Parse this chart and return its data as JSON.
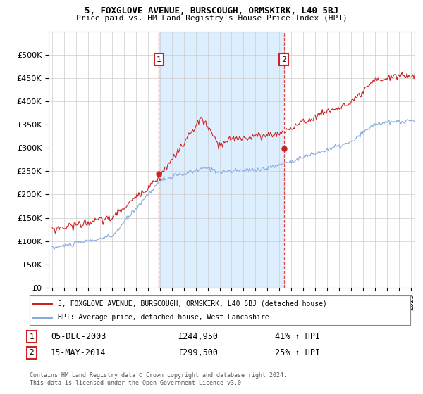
{
  "title": "5, FOXGLOVE AVENUE, BURSCOUGH, ORMSKIRK, L40 5BJ",
  "subtitle": "Price paid vs. HM Land Registry's House Price Index (HPI)",
  "ylim": [
    0,
    550000
  ],
  "yticks": [
    0,
    50000,
    100000,
    150000,
    200000,
    250000,
    300000,
    350000,
    400000,
    450000,
    500000
  ],
  "xlim_start": 1994.7,
  "xlim_end": 2025.3,
  "line1_color": "#cc2222",
  "line2_color": "#88aadd",
  "vline_color": "#dd4444",
  "shade_color": "#ddeeff",
  "marker1_year": 2003.92,
  "marker1_price": 244950,
  "marker2_year": 2014.37,
  "marker2_price": 299500,
  "legend_label1": "5, FOXGLOVE AVENUE, BURSCOUGH, ORMSKIRK, L40 5BJ (detached house)",
  "legend_label2": "HPI: Average price, detached house, West Lancashire",
  "annotation1_date": "05-DEC-2003",
  "annotation1_price": "£244,950",
  "annotation1_hpi": "41% ↑ HPI",
  "annotation2_date": "15-MAY-2014",
  "annotation2_price": "£299,500",
  "annotation2_hpi": "25% ↑ HPI",
  "footer": "Contains HM Land Registry data © Crown copyright and database right 2024.\nThis data is licensed under the Open Government Licence v3.0.",
  "background_color": "#ffffff",
  "grid_color": "#cccccc"
}
